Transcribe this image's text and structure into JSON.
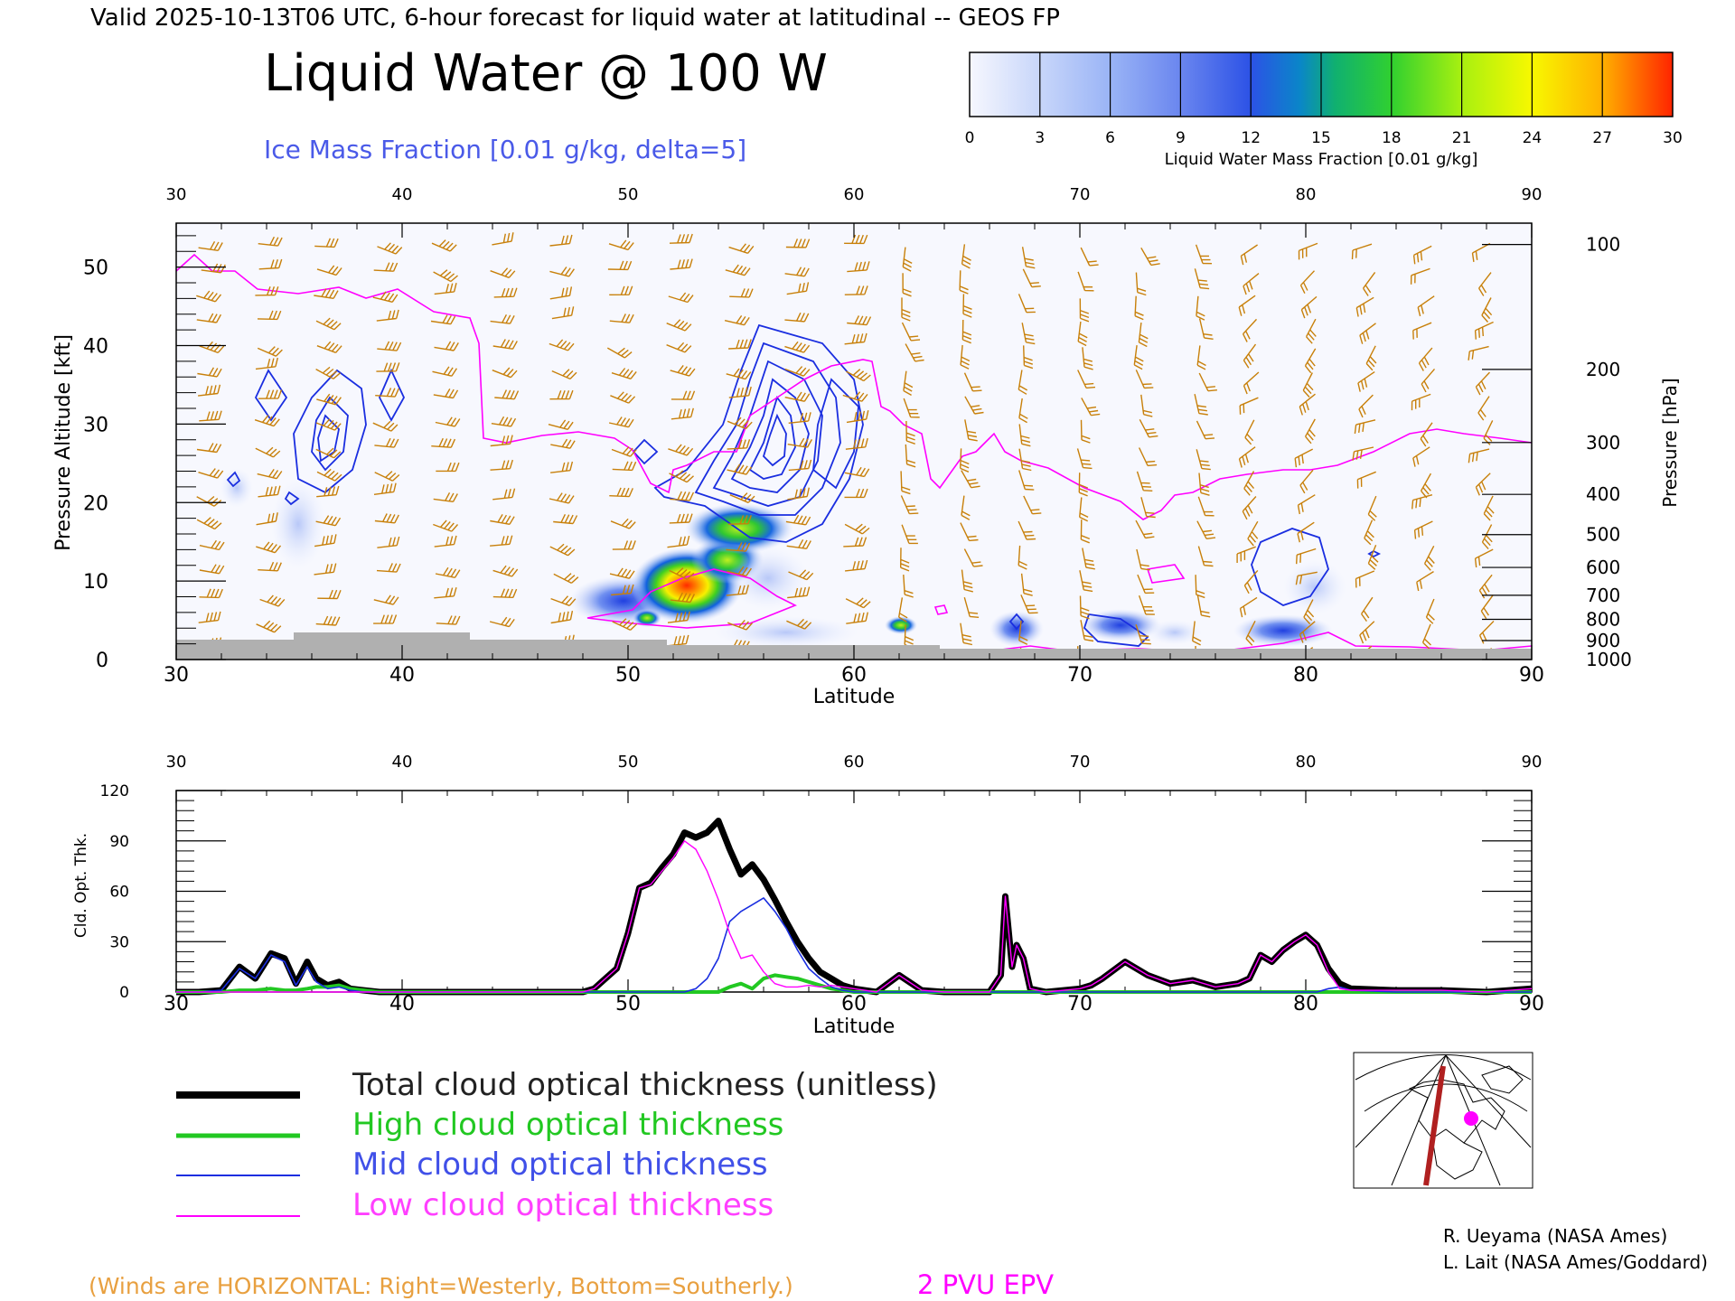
{
  "header": {
    "valid_line": "Valid 2025-10-13T06 UTC, 6-hour forecast for liquid water at latitudinal -- GEOS FP",
    "main_title": "Liquid Water @ 100 W",
    "ice_contour_label": "Ice Mass Fraction [0.01 g/kg, delta=5]"
  },
  "colorbar": {
    "ticks": [
      "0",
      "3",
      "6",
      "9",
      "12",
      "15",
      "18",
      "21",
      "24",
      "27",
      "30"
    ],
    "label": "Liquid Water Mass Fraction [0.01 g/kg]",
    "colors": [
      "#f4f6fe",
      "#c4d4fa",
      "#98b2f6",
      "#6c88f0",
      "#3456e4",
      "#08a0a8",
      "#30d030",
      "#a0f010",
      "#f8f800",
      "#ffb000",
      "#ff5000",
      "#ff2000"
    ]
  },
  "cross_section": {
    "lat_ticks": [
      "30",
      "40",
      "50",
      "60",
      "70",
      "80",
      "90"
    ],
    "alt_ticks": [
      "0",
      "10",
      "20",
      "30",
      "40",
      "50"
    ],
    "pressure_ticks": [
      "100",
      "200",
      "300",
      "400",
      "500",
      "600",
      "700",
      "800",
      "900",
      "1000"
    ],
    "xlabel": "Latitude",
    "ylabel_left": "Pressure Altitude [kft]",
    "ylabel_right": "Pressure [hPa]",
    "wind_barb_color": "#c8800a",
    "epv_color": "#ff00ff",
    "ice_contour_color": "#1a2ee0"
  },
  "chart_data": {
    "type": "line",
    "title": "",
    "xlabel": "Latitude",
    "ylabel": "Cld. Opt. Thk.",
    "xlim": [
      30,
      90
    ],
    "ylim": [
      0,
      120
    ],
    "x_ticks": [
      "30",
      "40",
      "50",
      "60",
      "70",
      "80",
      "90"
    ],
    "y_ticks": [
      "0",
      "30",
      "60",
      "90",
      "120"
    ],
    "x": [
      30,
      31,
      32,
      32.8,
      33.5,
      34.2,
      34.8,
      35.3,
      35.8,
      36.2,
      36.7,
      37.2,
      37.7,
      38.3,
      39,
      40,
      44,
      48,
      48.5,
      49,
      49.5,
      50,
      50.5,
      51,
      51.5,
      52,
      52.5,
      53,
      53.5,
      54,
      54.5,
      55,
      55.5,
      56,
      56.5,
      57,
      57.5,
      58,
      58.5,
      59,
      59.5,
      60,
      61,
      62,
      63,
      64,
      65,
      66,
      66.5,
      66.7,
      67,
      67.2,
      67.5,
      67.8,
      68.5,
      70,
      70.5,
      71,
      72,
      73,
      74,
      75,
      76,
      77,
      77.5,
      78,
      78.5,
      79,
      79.5,
      80,
      80.5,
      81,
      81.5,
      82,
      84,
      86,
      88,
      90
    ],
    "series": [
      {
        "name": "Total cloud optical thickness (unitless)",
        "color": "#000000",
        "values": [
          0,
          0,
          1,
          15,
          8,
          23,
          20,
          5,
          18,
          8,
          4,
          6,
          2,
          1,
          0,
          0,
          0,
          0,
          2,
          8,
          14,
          35,
          62,
          65,
          74,
          82,
          95,
          92,
          95,
          102,
          85,
          70,
          76,
          67,
          55,
          42,
          30,
          20,
          12,
          8,
          4,
          2,
          0,
          10,
          1,
          0,
          0,
          0,
          10,
          57,
          15,
          28,
          20,
          2,
          0,
          2,
          4,
          8,
          18,
          10,
          5,
          7,
          3,
          5,
          8,
          22,
          18,
          25,
          30,
          34,
          28,
          14,
          5,
          2,
          1,
          1,
          0,
          2
        ]
      },
      {
        "name": "High cloud optical thickness",
        "color": "#22c822",
        "values": [
          0,
          0,
          0,
          1,
          1,
          2,
          1,
          1,
          2,
          3,
          3,
          4,
          2,
          1,
          0,
          0,
          0,
          0,
          0,
          0,
          0,
          0,
          0,
          0,
          0,
          0,
          0,
          0,
          0,
          0,
          3,
          5,
          2,
          8,
          10,
          9,
          8,
          6,
          4,
          2,
          1,
          0,
          0,
          0,
          0,
          0,
          0,
          0,
          0,
          0,
          0,
          0,
          0,
          0,
          0,
          0,
          0,
          0,
          0,
          0,
          0,
          0,
          0,
          0,
          0,
          0,
          0,
          0,
          0,
          0,
          0,
          0,
          0,
          0,
          0,
          0,
          0,
          0
        ]
      },
      {
        "name": "Mid cloud optical thickness",
        "color": "#1a2ee0",
        "values": [
          0,
          0,
          1,
          14,
          8,
          22,
          18,
          4,
          15,
          6,
          2,
          3,
          1,
          0,
          0,
          0,
          0,
          0,
          0,
          0,
          0,
          0,
          0,
          0,
          0,
          0,
          0,
          2,
          8,
          20,
          42,
          48,
          52,
          56,
          48,
          38,
          25,
          14,
          8,
          3,
          1,
          0,
          0,
          0,
          0,
          0,
          0,
          0,
          0,
          0,
          0,
          0,
          0,
          0,
          0,
          0,
          0,
          0,
          0,
          0,
          0,
          0,
          0,
          0,
          0,
          0,
          0,
          0,
          0,
          0,
          0,
          2,
          3,
          1,
          0,
          0,
          0,
          0
        ]
      },
      {
        "name": "Low cloud optical thickness",
        "color": "#ff00ff",
        "values": [
          0,
          0,
          0,
          0,
          0,
          0,
          0,
          0,
          0,
          0,
          0,
          0,
          0,
          0,
          0,
          0,
          0,
          0,
          2,
          8,
          14,
          35,
          62,
          64,
          72,
          80,
          90,
          85,
          72,
          55,
          35,
          20,
          22,
          12,
          5,
          3,
          3,
          4,
          3,
          4,
          3,
          2,
          0,
          10,
          1,
          0,
          0,
          0,
          10,
          57,
          15,
          28,
          20,
          2,
          0,
          2,
          4,
          8,
          18,
          10,
          5,
          7,
          3,
          5,
          8,
          22,
          18,
          25,
          30,
          34,
          28,
          12,
          2,
          1,
          1,
          1,
          0,
          2
        ]
      }
    ]
  },
  "legend": {
    "items": [
      {
        "label": "Total cloud optical thickness (unitless)",
        "color": "#000000",
        "text_color": "#222222"
      },
      {
        "label": "High cloud optical thickness",
        "color": "#22c822",
        "text_color": "#22c822"
      },
      {
        "label": "Mid cloud optical thickness",
        "color": "#1a2ee0",
        "text_color": "#4050e8"
      },
      {
        "label": "Low cloud optical thickness",
        "color": "#ff00ff",
        "text_color": "#ff40ff"
      }
    ]
  },
  "footer": {
    "winds_note": "(Winds are HORIZONTAL: Right=Westerly, Bottom=Southerly.)",
    "epv_label": "2 PVU EPV",
    "credit_1": "R. Ueyama (NASA Ames)",
    "credit_2": "L. Lait (NASA Ames/Goddard)"
  }
}
